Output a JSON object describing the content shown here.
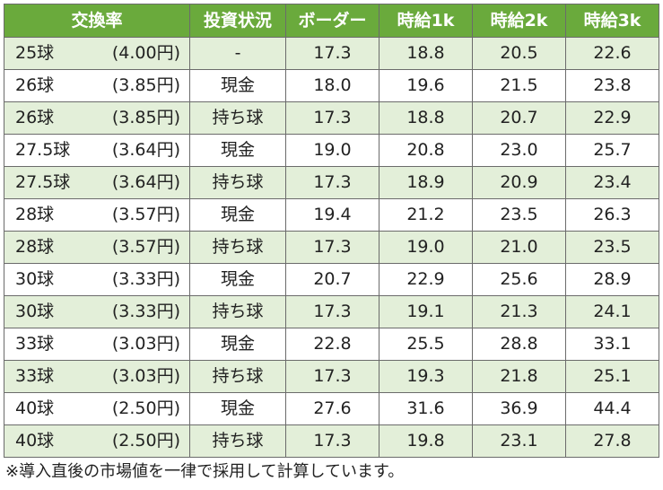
{
  "table": {
    "headers": [
      "交換率",
      "投資状況",
      "ボーダー",
      "時給1k",
      "時給2k",
      "時給3k"
    ],
    "rows": [
      {
        "balls": "25球",
        "yen": "(4.00円)",
        "invest": "-",
        "border": "17.3",
        "w1k": "18.8",
        "w2k": "20.5",
        "w3k": "22.6"
      },
      {
        "balls": "26球",
        "yen": "(3.85円)",
        "invest": "現金",
        "border": "18.0",
        "w1k": "19.6",
        "w2k": "21.5",
        "w3k": "23.8"
      },
      {
        "balls": "26球",
        "yen": "(3.85円)",
        "invest": "持ち球",
        "border": "17.3",
        "w1k": "18.8",
        "w2k": "20.7",
        "w3k": "22.9"
      },
      {
        "balls": "27.5球",
        "yen": "(3.64円)",
        "invest": "現金",
        "border": "19.0",
        "w1k": "20.8",
        "w2k": "23.0",
        "w3k": "25.7"
      },
      {
        "balls": "27.5球",
        "yen": "(3.64円)",
        "invest": "持ち球",
        "border": "17.3",
        "w1k": "18.9",
        "w2k": "20.9",
        "w3k": "23.4"
      },
      {
        "balls": "28球",
        "yen": "(3.57円)",
        "invest": "現金",
        "border": "19.4",
        "w1k": "21.2",
        "w2k": "23.5",
        "w3k": "26.3"
      },
      {
        "balls": "28球",
        "yen": "(3.57円)",
        "invest": "持ち球",
        "border": "17.3",
        "w1k": "19.0",
        "w2k": "21.0",
        "w3k": "23.5"
      },
      {
        "balls": "30球",
        "yen": "(3.33円)",
        "invest": "現金",
        "border": "20.7",
        "w1k": "22.9",
        "w2k": "25.6",
        "w3k": "28.9"
      },
      {
        "balls": "30球",
        "yen": "(3.33円)",
        "invest": "持ち球",
        "border": "17.3",
        "w1k": "19.1",
        "w2k": "21.3",
        "w3k": "24.1"
      },
      {
        "balls": "33球",
        "yen": "(3.03円)",
        "invest": "現金",
        "border": "22.8",
        "w1k": "25.5",
        "w2k": "28.8",
        "w3k": "33.1"
      },
      {
        "balls": "33球",
        "yen": "(3.03円)",
        "invest": "持ち球",
        "border": "17.3",
        "w1k": "19.3",
        "w2k": "21.8",
        "w3k": "25.1"
      },
      {
        "balls": "40球",
        "yen": "(2.50円)",
        "invest": "現金",
        "border": "27.6",
        "w1k": "31.6",
        "w2k": "36.9",
        "w3k": "44.4"
      },
      {
        "balls": "40球",
        "yen": "(2.50円)",
        "invest": "持ち球",
        "border": "17.3",
        "w1k": "19.8",
        "w2k": "23.1",
        "w3k": "27.8"
      }
    ]
  },
  "note": "※導入直後の市場値を一律で採用して計算しています。",
  "colors": {
    "header_bg": "#6aaa3c",
    "shade_row": "#e3efd9",
    "border": "#6b6b6b"
  }
}
